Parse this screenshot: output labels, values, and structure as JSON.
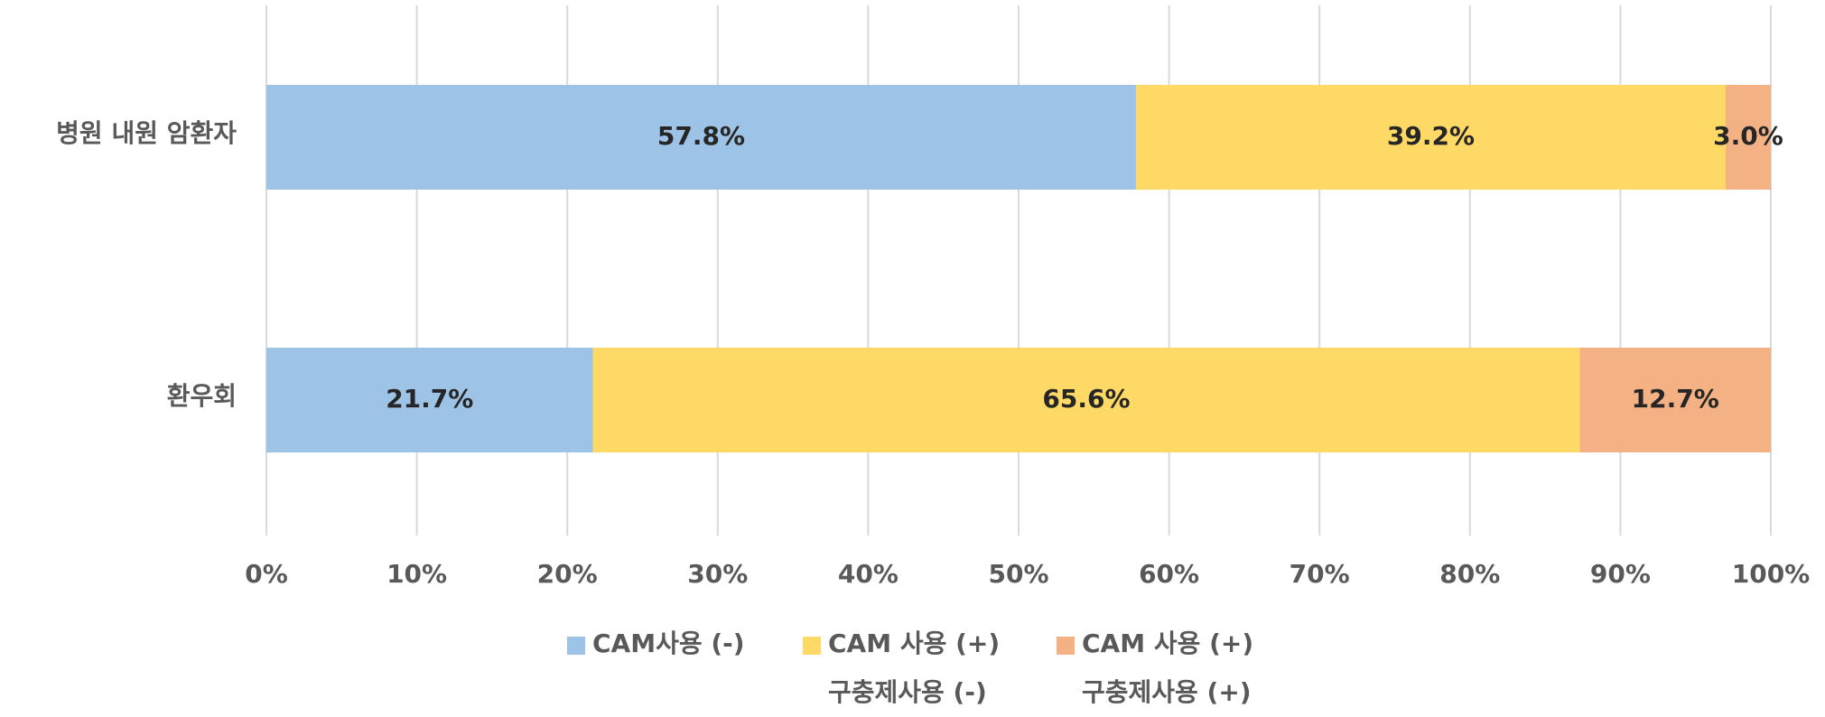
{
  "chart_data": {
    "type": "stacked_bar_horizontal",
    "categories": [
      "병원 내원 암환자",
      "환우회"
    ],
    "series": [
      {
        "name": "CAM사용 (-)",
        "color": "#9DC3E6",
        "values": [
          57.8,
          21.7
        ],
        "value_labels": [
          "57.8%",
          "21.7%"
        ]
      },
      {
        "name": "CAM 사용 (+)\n구충제사용 (-)",
        "color": "#FFD966",
        "values": [
          39.2,
          65.6
        ],
        "value_labels": [
          "39.2%",
          "65.6%"
        ]
      },
      {
        "name": "CAM 사용 (+)\n구충제사용 (+)",
        "color": "#F4B183",
        "values": [
          3.0,
          12.7
        ],
        "value_labels": [
          "3.0%",
          "12.7%"
        ]
      }
    ],
    "xlim": [
      0,
      100
    ],
    "xticks": [
      {
        "value": 0,
        "label": "0%"
      },
      {
        "value": 10,
        "label": "10%"
      },
      {
        "value": 20,
        "label": "20%"
      },
      {
        "value": 30,
        "label": "30%"
      },
      {
        "value": 40,
        "label": "40%"
      },
      {
        "value": 50,
        "label": "50%"
      },
      {
        "value": 60,
        "label": "60%"
      },
      {
        "value": 70,
        "label": "70%"
      },
      {
        "value": 80,
        "label": "80%"
      },
      {
        "value": 90,
        "label": "90%"
      },
      {
        "value": 100,
        "label": "100%"
      }
    ],
    "grid": true,
    "legend": "bottom"
  }
}
